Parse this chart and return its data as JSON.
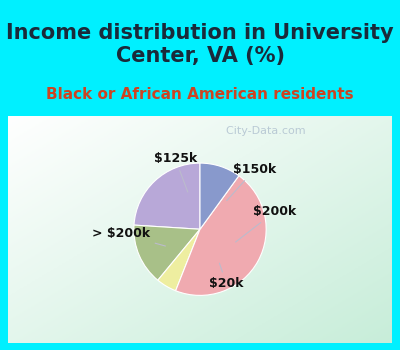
{
  "title": "Income distribution in University\nCenter, VA (%)",
  "subtitle": "Black or African American residents",
  "labels": [
    "$150k",
    "$200k",
    "$20k",
    "> $200k",
    "$125k"
  ],
  "sizes": [
    24,
    15,
    5,
    46,
    10
  ],
  "colors": [
    "#b8a8d8",
    "#a8c088",
    "#eeeea0",
    "#f0aab0",
    "#8899cc"
  ],
  "startangle": 90,
  "title_fontsize": 15,
  "subtitle_fontsize": 11,
  "label_fontsize": 9,
  "bg_cyan": "#00f0ff",
  "title_color": "#1a2a3a",
  "subtitle_color": "#cc4422",
  "watermark": "  City-Data.com",
  "watermark_color": "#aabbcc"
}
